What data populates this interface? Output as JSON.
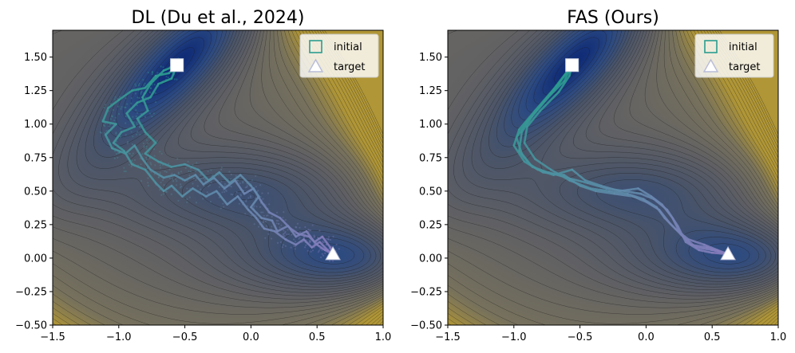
{
  "chart_data": [
    {
      "type": "line",
      "title": "DL (Du et al., 2024)",
      "xlabel": "",
      "ylabel": "",
      "xlim": [
        -1.5,
        1.0
      ],
      "ylim": [
        -0.5,
        1.7
      ],
      "xticks": [
        -1.5,
        -1.0,
        -0.5,
        0.0,
        0.5,
        1.0
      ],
      "xtick_labels": [
        "−1.5",
        "−1.0",
        "−0.5",
        "0.0",
        "0.5",
        "1.0"
      ],
      "yticks": [
        -0.5,
        -0.25,
        0.0,
        0.25,
        0.5,
        0.75,
        1.0,
        1.25,
        1.5
      ],
      "ytick_labels": [
        "−0.50",
        "−0.25",
        "0.00",
        "0.25",
        "0.50",
        "0.75",
        "1.00",
        "1.25",
        "1.50"
      ],
      "background": "Mueller-Brown potential energy contours",
      "legend": {
        "placement": "top-right",
        "entries": [
          "initial",
          "target"
        ]
      },
      "markers": {
        "initial": {
          "x": -0.56,
          "y": 1.44,
          "shape": "square"
        },
        "target": {
          "x": 0.62,
          "y": 0.03,
          "shape": "triangle"
        }
      },
      "trajectory_color_start": "#2a9d8f",
      "trajectory_color_end": "#8b7bc0",
      "trajectories": [
        [
          [
            -0.56,
            1.44
          ],
          [
            -0.62,
            1.38
          ],
          [
            -0.72,
            1.36
          ],
          [
            -0.8,
            1.27
          ],
          [
            -0.9,
            1.25
          ],
          [
            -1.0,
            1.18
          ],
          [
            -1.08,
            1.12
          ],
          [
            -1.12,
            1.02
          ],
          [
            -1.02,
            1.0
          ],
          [
            -1.1,
            0.92
          ],
          [
            -1.05,
            0.82
          ],
          [
            -0.95,
            0.78
          ],
          [
            -0.88,
            0.84
          ],
          [
            -0.82,
            0.74
          ],
          [
            -0.76,
            0.66
          ],
          [
            -0.66,
            0.6
          ],
          [
            -0.58,
            0.62
          ],
          [
            -0.5,
            0.58
          ],
          [
            -0.42,
            0.62
          ],
          [
            -0.36,
            0.55
          ],
          [
            -0.28,
            0.6
          ],
          [
            -0.2,
            0.52
          ],
          [
            -0.12,
            0.58
          ],
          [
            -0.05,
            0.48
          ],
          [
            0.02,
            0.52
          ],
          [
            0.08,
            0.42
          ],
          [
            0.14,
            0.34
          ],
          [
            0.22,
            0.3
          ],
          [
            0.3,
            0.22
          ],
          [
            0.36,
            0.18
          ],
          [
            0.44,
            0.16
          ],
          [
            0.5,
            0.1
          ],
          [
            0.56,
            0.06
          ],
          [
            0.62,
            0.03
          ]
        ],
        [
          [
            -0.56,
            1.44
          ],
          [
            -0.6,
            1.34
          ],
          [
            -0.7,
            1.3
          ],
          [
            -0.76,
            1.2
          ],
          [
            -0.86,
            1.16
          ],
          [
            -0.94,
            1.08
          ],
          [
            -0.88,
            0.98
          ],
          [
            -0.98,
            0.94
          ],
          [
            -1.04,
            0.86
          ],
          [
            -0.96,
            0.8
          ],
          [
            -0.9,
            0.7
          ],
          [
            -0.8,
            0.66
          ],
          [
            -0.72,
            0.56
          ],
          [
            -0.66,
            0.5
          ],
          [
            -0.6,
            0.54
          ],
          [
            -0.52,
            0.46
          ],
          [
            -0.44,
            0.52
          ],
          [
            -0.34,
            0.46
          ],
          [
            -0.26,
            0.5
          ],
          [
            -0.18,
            0.4
          ],
          [
            -0.1,
            0.46
          ],
          [
            -0.02,
            0.36
          ],
          [
            0.04,
            0.3
          ],
          [
            0.1,
            0.22
          ],
          [
            0.18,
            0.2
          ],
          [
            0.26,
            0.14
          ],
          [
            0.34,
            0.1
          ],
          [
            0.4,
            0.14
          ],
          [
            0.46,
            0.08
          ],
          [
            0.52,
            0.12
          ],
          [
            0.58,
            0.06
          ],
          [
            0.62,
            0.03
          ]
        ],
        [
          [
            -0.56,
            1.44
          ],
          [
            -0.66,
            1.4
          ],
          [
            -0.76,
            1.3
          ],
          [
            -0.82,
            1.2
          ],
          [
            -0.78,
            1.1
          ],
          [
            -0.86,
            1.04
          ],
          [
            -0.8,
            0.94
          ],
          [
            -0.72,
            0.86
          ],
          [
            -0.8,
            0.78
          ],
          [
            -0.7,
            0.72
          ],
          [
            -0.6,
            0.68
          ],
          [
            -0.5,
            0.7
          ],
          [
            -0.4,
            0.66
          ],
          [
            -0.32,
            0.58
          ],
          [
            -0.24,
            0.64
          ],
          [
            -0.16,
            0.56
          ],
          [
            -0.08,
            0.62
          ],
          [
            0.0,
            0.54
          ],
          [
            0.06,
            0.46
          ],
          [
            0.0,
            0.38
          ],
          [
            0.08,
            0.3
          ],
          [
            0.16,
            0.28
          ],
          [
            0.2,
            0.2
          ],
          [
            0.28,
            0.24
          ],
          [
            0.34,
            0.16
          ],
          [
            0.42,
            0.2
          ],
          [
            0.48,
            0.12
          ],
          [
            0.54,
            0.16
          ],
          [
            0.6,
            0.08
          ],
          [
            0.62,
            0.03
          ]
        ]
      ]
    },
    {
      "type": "line",
      "title": "FAS (Ours)",
      "xlabel": "",
      "ylabel": "",
      "xlim": [
        -1.5,
        1.0
      ],
      "ylim": [
        -0.5,
        1.7
      ],
      "xticks": [
        -1.5,
        -1.0,
        -0.5,
        0.0,
        0.5,
        1.0
      ],
      "xtick_labels": [
        "−1.5",
        "−1.0",
        "−0.5",
        "0.0",
        "0.5",
        "1.0"
      ],
      "yticks": [
        -0.5,
        -0.25,
        0.0,
        0.25,
        0.5,
        0.75,
        1.0,
        1.25,
        1.5
      ],
      "ytick_labels": [
        "−0.50",
        "−0.25",
        "0.00",
        "0.25",
        "0.50",
        "0.75",
        "1.00",
        "1.25",
        "1.50"
      ],
      "background": "Mueller-Brown potential energy contours",
      "legend": {
        "placement": "top-right",
        "entries": [
          "initial",
          "target"
        ]
      },
      "markers": {
        "initial": {
          "x": -0.56,
          "y": 1.44,
          "shape": "square"
        },
        "target": {
          "x": 0.62,
          "y": 0.03,
          "shape": "triangle"
        }
      },
      "trajectory_color_start": "#2a9d8f",
      "trajectory_color_end": "#8b7bc0",
      "trajectories": [
        [
          [
            -0.56,
            1.44
          ],
          [
            -0.66,
            1.3
          ],
          [
            -0.78,
            1.16
          ],
          [
            -0.9,
            1.02
          ],
          [
            -0.98,
            0.9
          ],
          [
            -0.94,
            0.78
          ],
          [
            -0.86,
            0.68
          ],
          [
            -0.74,
            0.64
          ],
          [
            -0.6,
            0.6
          ],
          [
            -0.44,
            0.56
          ],
          [
            -0.3,
            0.52
          ],
          [
            -0.16,
            0.5
          ],
          [
            -0.04,
            0.48
          ],
          [
            0.06,
            0.44
          ],
          [
            0.16,
            0.36
          ],
          [
            0.24,
            0.24
          ],
          [
            0.3,
            0.12
          ],
          [
            0.4,
            0.06
          ],
          [
            0.5,
            0.04
          ],
          [
            0.62,
            0.03
          ]
        ],
        [
          [
            -0.56,
            1.44
          ],
          [
            -0.7,
            1.26
          ],
          [
            -0.84,
            1.1
          ],
          [
            -0.96,
            0.96
          ],
          [
            -1.0,
            0.84
          ],
          [
            -0.92,
            0.72
          ],
          [
            -0.82,
            0.66
          ],
          [
            -0.7,
            0.62
          ],
          [
            -0.56,
            0.66
          ],
          [
            -0.46,
            0.58
          ],
          [
            -0.34,
            0.54
          ],
          [
            -0.2,
            0.5
          ],
          [
            -0.06,
            0.52
          ],
          [
            0.04,
            0.46
          ],
          [
            0.12,
            0.4
          ],
          [
            0.2,
            0.3
          ],
          [
            0.26,
            0.18
          ],
          [
            0.34,
            0.1
          ],
          [
            0.46,
            0.08
          ],
          [
            0.62,
            0.03
          ]
        ],
        [
          [
            -0.56,
            1.44
          ],
          [
            -0.62,
            1.32
          ],
          [
            -0.74,
            1.2
          ],
          [
            -0.86,
            1.06
          ],
          [
            -0.94,
            0.94
          ],
          [
            -0.96,
            0.8
          ],
          [
            -0.88,
            0.7
          ],
          [
            -0.78,
            0.64
          ],
          [
            -0.62,
            0.62
          ],
          [
            -0.5,
            0.54
          ],
          [
            -0.38,
            0.5
          ],
          [
            -0.24,
            0.48
          ],
          [
            -0.1,
            0.46
          ],
          [
            0.0,
            0.42
          ],
          [
            0.1,
            0.36
          ],
          [
            0.18,
            0.26
          ],
          [
            0.28,
            0.16
          ],
          [
            0.38,
            0.08
          ],
          [
            0.5,
            0.06
          ],
          [
            0.62,
            0.03
          ]
        ],
        [
          [
            -0.56,
            1.44
          ],
          [
            -0.58,
            1.36
          ],
          [
            -0.66,
            1.24
          ],
          [
            -0.8,
            1.1
          ],
          [
            -0.9,
            0.98
          ],
          [
            -0.92,
            0.86
          ],
          [
            -0.84,
            0.74
          ],
          [
            -0.72,
            0.66
          ],
          [
            -0.58,
            0.58
          ],
          [
            -0.42,
            0.52
          ],
          [
            -0.28,
            0.5
          ],
          [
            -0.14,
            0.48
          ],
          [
            -0.02,
            0.44
          ],
          [
            0.08,
            0.38
          ],
          [
            0.14,
            0.3
          ],
          [
            0.22,
            0.22
          ],
          [
            0.32,
            0.14
          ],
          [
            0.44,
            0.1
          ],
          [
            0.54,
            0.06
          ],
          [
            0.62,
            0.03
          ]
        ]
      ]
    }
  ]
}
